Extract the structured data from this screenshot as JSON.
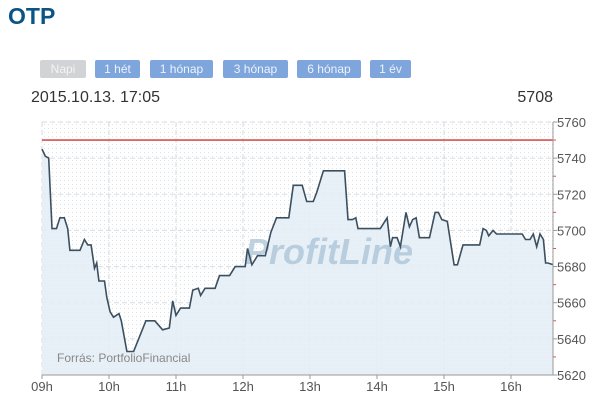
{
  "header": {
    "title": "OTP",
    "timestamp": "2015.10.13. 17:05",
    "last_price": "5708"
  },
  "range_buttons": [
    {
      "label": "Napi",
      "active": true
    },
    {
      "label": "1 hét",
      "active": false
    },
    {
      "label": "1 hónap",
      "active": false
    },
    {
      "label": "3 hónap",
      "active": false
    },
    {
      "label": "6 hónap",
      "active": false
    },
    {
      "label": "1 év",
      "active": false
    }
  ],
  "colors": {
    "line": "#3b4f5f",
    "fill": "#e4edf6",
    "reference": "#d9534f",
    "button": "#7ea5dc",
    "title": "#0b5486"
  },
  "chart_data": {
    "type": "area",
    "watermark": "ProfitLine",
    "source": "Forrás: PortfolioFinancial",
    "xlim": [
      "09:00",
      "16:38"
    ],
    "x_ticks": [
      "09h",
      "10h",
      "11h",
      "12h",
      "13h",
      "14h",
      "15h",
      "16h"
    ],
    "ylim": [
      5620,
      5760
    ],
    "y_ticks": [
      5620,
      5640,
      5660,
      5680,
      5700,
      5720,
      5740,
      5760
    ],
    "y_axis_side": "right",
    "grid": true,
    "reference_line": 5750,
    "series": [
      {
        "points": [
          [
            "09:00",
            5745
          ],
          [
            "09:03",
            5741
          ],
          [
            "09:06",
            5740
          ],
          [
            "09:09",
            5701
          ],
          [
            "09:13",
            5701
          ],
          [
            "09:16",
            5707
          ],
          [
            "09:20",
            5707
          ],
          [
            "09:23",
            5701
          ],
          [
            "09:25",
            5689
          ],
          [
            "09:34",
            5689
          ],
          [
            "09:38",
            5695
          ],
          [
            "09:41",
            5692
          ],
          [
            "09:44",
            5692
          ],
          [
            "09:47",
            5679
          ],
          [
            "09:49",
            5682
          ],
          [
            "09:51",
            5672
          ],
          [
            "09:56",
            5672
          ],
          [
            "09:58",
            5663
          ],
          [
            "10:01",
            5655
          ],
          [
            "10:04",
            5652
          ],
          [
            "10:09",
            5654
          ],
          [
            "10:11",
            5650
          ],
          [
            "10:16",
            5633
          ],
          [
            "10:22",
            5633
          ],
          [
            "10:33",
            5650
          ],
          [
            "10:41",
            5650
          ],
          [
            "10:48",
            5645
          ],
          [
            "10:54",
            5646
          ],
          [
            "10:57",
            5661
          ],
          [
            "11:00",
            5653
          ],
          [
            "11:04",
            5657
          ],
          [
            "11:12",
            5657
          ],
          [
            "11:15",
            5667
          ],
          [
            "11:20",
            5668
          ],
          [
            "11:22",
            5664
          ],
          [
            "11:26",
            5668
          ],
          [
            "11:35",
            5668
          ],
          [
            "11:39",
            5675
          ],
          [
            "11:48",
            5675
          ],
          [
            "11:53",
            5680
          ],
          [
            "12:02",
            5680
          ],
          [
            "12:04",
            5690
          ],
          [
            "12:08",
            5681
          ],
          [
            "12:13",
            5686
          ],
          [
            "12:20",
            5686
          ],
          [
            "12:25",
            5699
          ],
          [
            "12:30",
            5707
          ],
          [
            "12:41",
            5707
          ],
          [
            "12:45",
            5725
          ],
          [
            "12:53",
            5725
          ],
          [
            "12:57",
            5716
          ],
          [
            "13:03",
            5716
          ],
          [
            "13:06",
            5721
          ],
          [
            "13:12",
            5733
          ],
          [
            "13:31",
            5733
          ],
          [
            "13:34",
            5706
          ],
          [
            "13:38",
            5706
          ],
          [
            "13:41",
            5707
          ],
          [
            "13:43",
            5701
          ],
          [
            "13:55",
            5701
          ],
          [
            "14:03",
            5701
          ],
          [
            "14:09",
            5707
          ],
          [
            "14:12",
            5691
          ],
          [
            "14:14",
            5696
          ],
          [
            "14:18",
            5696
          ],
          [
            "14:21",
            5691
          ],
          [
            "14:26",
            5710
          ],
          [
            "14:29",
            5702
          ],
          [
            "14:32",
            5706
          ],
          [
            "14:35",
            5707
          ],
          [
            "14:38",
            5696
          ],
          [
            "14:47",
            5696
          ],
          [
            "14:52",
            5710
          ],
          [
            "14:55",
            5710
          ],
          [
            "14:58",
            5706
          ],
          [
            "15:03",
            5705
          ],
          [
            "15:09",
            5681
          ],
          [
            "15:12",
            5681
          ],
          [
            "15:17",
            5692
          ],
          [
            "15:32",
            5692
          ],
          [
            "15:35",
            5701
          ],
          [
            "15:38",
            5700
          ],
          [
            "15:40",
            5697
          ],
          [
            "15:44",
            5700
          ],
          [
            "15:47",
            5698
          ],
          [
            "16:10",
            5698
          ],
          [
            "16:13",
            5695
          ],
          [
            "16:17",
            5695
          ],
          [
            "16:20",
            5698
          ],
          [
            "16:23",
            5691
          ],
          [
            "16:26",
            5698
          ],
          [
            "16:29",
            5695
          ],
          [
            "16:31",
            5682
          ],
          [
            "16:33",
            5682
          ],
          [
            "16:38",
            5681
          ]
        ]
      }
    ]
  }
}
